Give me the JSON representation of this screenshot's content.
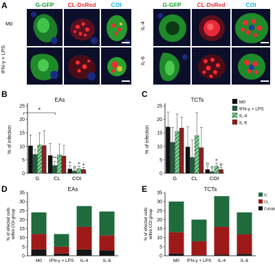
{
  "panel_labels": {
    "A": "A",
    "B": "B",
    "C": "C",
    "D": "D",
    "E": "E"
  },
  "colors": {
    "green": "#1a9c2e",
    "red": "#e0303a",
    "cyan": "#18aee0",
    "m0": "#111111",
    "ifn": "#2f7a4f",
    "il4": "#8fd6a2",
    "il6": "#8a1f1f",
    "stack_g": "#1f6b3e",
    "stack_cl": "#9e1a18",
    "stack_cohab": "#151515"
  },
  "microscopy": {
    "channels": [
      "G-GFP",
      "CL-DsRed",
      "COI"
    ],
    "left_rows": [
      "M0",
      "IFN-γ + LPS"
    ],
    "right_rows": [
      "IL-4",
      "IL-6"
    ]
  },
  "chart_data": [
    {
      "id": "B",
      "type": "bar",
      "title": "EAs",
      "xlabel": "",
      "ylabel": "% of infection",
      "ylim": [
        0,
        25
      ],
      "yticks": [
        0,
        5,
        10,
        15,
        20,
        25
      ],
      "categories": [
        "G",
        "CL",
        "COI"
      ],
      "legend_position": "none",
      "series": [
        {
          "name": "M0",
          "values": [
            10.2,
            6.6,
            1.6
          ],
          "errors": [
            4.0,
            4.5,
            1.3
          ],
          "pattern": "solid"
        },
        {
          "name": "IFN-γ + LPS",
          "values": [
            7.0,
            2.9,
            0.8
          ],
          "errors": [
            1.8,
            1.6,
            0.4
          ],
          "pattern": "hatch"
        },
        {
          "name": "IL-4",
          "values": [
            10.5,
            6.8,
            1.7
          ],
          "errors": [
            4.5,
            4.0,
            1.0
          ],
          "pattern": "stripe"
        },
        {
          "name": "IL-6",
          "values": [
            10.3,
            6.4,
            1.4
          ],
          "errors": [
            5.5,
            4.0,
            0.8
          ],
          "pattern": "solid"
        }
      ],
      "annotations": [
        {
          "text": "*",
          "kind": "bracket",
          "category": "G"
        },
        {
          "text": "**",
          "category": "CL",
          "series": 1
        },
        {
          "text": "+",
          "category": "COI",
          "series": 0
        },
        {
          "text": "o",
          "category": "COI",
          "series": 1
        },
        {
          "text": "+",
          "category": "COI",
          "series": 2
        },
        {
          "text": "+",
          "category": "COI",
          "series": 3
        }
      ]
    },
    {
      "id": "C",
      "type": "bar",
      "title": "TCTs",
      "xlabel": "",
      "ylabel": "% of infection",
      "ylim": [
        0,
        25
      ],
      "yticks": [
        0,
        5,
        10,
        15,
        20,
        25
      ],
      "categories": [
        "G",
        "CL",
        "COI"
      ],
      "legend_position": "top-right",
      "series": [
        {
          "name": "M0",
          "values": [
            17.2,
            9.8,
            1.4
          ],
          "errors": [
            5.5,
            7.5,
            1.0
          ],
          "pattern": "solid"
        },
        {
          "name": "IFN-γ + LPS",
          "values": [
            11.5,
            5.9,
            0.6
          ],
          "errors": [
            5.5,
            6.5,
            0.5
          ],
          "pattern": "hatch"
        },
        {
          "name": "IL-4",
          "values": [
            15.5,
            14.0,
            2.6
          ],
          "errors": [
            6.5,
            8.5,
            1.2
          ],
          "pattern": "stripe"
        },
        {
          "name": "IL-6",
          "values": [
            16.8,
            9.5,
            1.4
          ],
          "errors": [
            4.0,
            7.5,
            0.8
          ],
          "pattern": "solid"
        }
      ],
      "annotations": [
        {
          "text": "o",
          "category": "COI",
          "series": 0
        },
        {
          "text": "o",
          "category": "COI",
          "series": 1
        },
        {
          "text": "+",
          "category": "COI",
          "series": 2
        },
        {
          "text": "o",
          "category": "COI",
          "series": 3
        }
      ]
    },
    {
      "id": "D",
      "type": "bar",
      "stacked": true,
      "title": "EAs",
      "xlabel": "",
      "ylabel": "% of infected cells within COI group",
      "ylim": [
        0,
        35
      ],
      "yticks": [
        0,
        5,
        10,
        15,
        20,
        25,
        30,
        35
      ],
      "categories": [
        "M0",
        "IFN-γ + LPS",
        "IL-4",
        "IL-6"
      ],
      "legend_position": "none",
      "series": [
        {
          "name": "Cohab",
          "values": [
            3.5,
            1.2,
            3.5,
            3.0
          ]
        },
        {
          "name": "CL",
          "values": [
            8.5,
            3.8,
            12.5,
            8.3
          ]
        },
        {
          "name": "G",
          "values": [
            12.0,
            7.0,
            11.5,
            13.2
          ]
        }
      ]
    },
    {
      "id": "E",
      "type": "bar",
      "stacked": true,
      "title": "TCTs",
      "xlabel": "",
      "ylabel": "% of infected cells within COI group",
      "ylim": [
        0,
        35
      ],
      "yticks": [
        0,
        5,
        10,
        15,
        20,
        25,
        30,
        35
      ],
      "categories": [
        "M0",
        "IFN-γ + LPS",
        "IL-4",
        "IL-6"
      ],
      "legend_position": "top-right",
      "series": [
        {
          "name": "Cohab",
          "values": [
            1.2,
            0.3,
            0.6,
            1.0
          ]
        },
        {
          "name": "CL",
          "values": [
            11.8,
            7.7,
            15.4,
            10.8
          ]
        },
        {
          "name": "G",
          "values": [
            17.0,
            12.0,
            17.0,
            12.2
          ]
        }
      ]
    }
  ]
}
